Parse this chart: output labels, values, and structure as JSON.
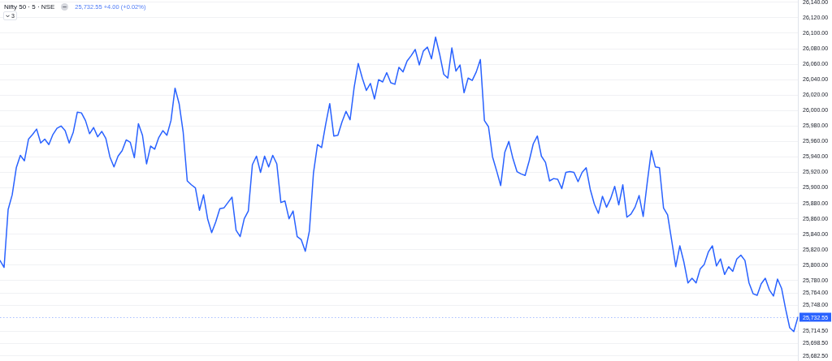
{
  "chart_data": {
    "type": "line",
    "title": "Nifty 50 · 5 · NSE",
    "annotations": [
      "25,732.55 +4.00 (+0.02%)",
      "3"
    ],
    "categories": [
      null,
      null,
      null,
      null,
      null,
      null,
      null,
      null,
      null,
      null,
      null,
      null,
      null,
      null,
      null,
      null,
      null,
      null,
      null,
      null,
      null,
      null,
      null,
      null,
      null,
      null,
      null,
      null,
      null,
      null,
      null,
      null,
      null,
      null,
      null,
      null,
      null,
      null,
      null,
      null,
      null,
      null,
      null,
      null,
      null,
      null,
      null,
      null,
      null,
      null,
      null,
      null,
      null,
      null,
      null,
      null,
      null,
      null,
      null,
      null,
      null,
      null,
      null,
      null,
      null,
      null,
      null,
      null,
      null,
      null,
      null,
      null,
      null,
      null,
      null,
      null,
      null,
      null,
      null,
      null,
      null,
      null,
      null,
      null,
      null,
      null,
      null,
      null,
      null,
      null,
      null,
      null,
      null,
      null,
      null,
      null,
      null,
      null,
      null,
      null,
      null,
      null,
      null,
      null,
      null,
      null,
      null,
      null,
      null,
      null,
      null,
      null,
      null,
      null,
      null,
      null,
      null,
      null,
      null,
      null,
      null,
      null,
      null,
      null,
      null,
      null,
      null,
      null,
      null,
      null,
      null,
      null,
      null,
      null,
      null,
      null,
      null,
      null,
      null,
      null,
      null,
      null,
      null,
      null,
      null,
      null,
      null,
      null,
      null,
      null,
      null,
      null,
      null,
      null,
      null,
      null,
      null,
      null,
      null,
      null,
      null,
      null,
      null,
      null,
      null,
      null,
      null,
      null,
      null,
      null,
      null,
      null,
      null,
      null,
      null,
      null,
      null,
      null,
      null,
      null,
      null,
      null,
      null,
      null,
      null,
      null,
      null,
      null,
      null,
      null,
      null,
      null,
      null,
      null,
      null,
      null,
      null
    ],
    "series": [
      {
        "color": "#2962ff",
        "values": [
          25806,
          25797,
          25872,
          25891,
          25926,
          25942,
          25935,
          25963,
          25969,
          25976,
          25958,
          25963,
          25956,
          25969,
          25977,
          25980,
          25974,
          25958,
          25972,
          25998,
          25997,
          25987,
          25970,
          25978,
          25966,
          25973,
          25964,
          25940,
          25927,
          25941,
          25948,
          25962,
          25959,
          25939,
          25983,
          25968,
          25931,
          25954,
          25950,
          25965,
          25974,
          25968,
          25987,
          26029,
          26009,
          25972,
          25909,
          25904,
          25900,
          25871,
          25891,
          25860,
          25842,
          25856,
          25873,
          25874,
          25881,
          25888,
          25845,
          25837,
          25860,
          25870,
          25930,
          25941,
          25920,
          25941,
          25927,
          25942,
          25931,
          25881,
          25883,
          25860,
          25870,
          25837,
          25833,
          25818,
          25844,
          25919,
          25956,
          25952,
          25982,
          26009,
          25967,
          25968,
          25985,
          25999,
          25988,
          26030,
          26061,
          26042,
          26026,
          26035,
          26015,
          26040,
          26037,
          26049,
          26036,
          26034,
          26056,
          26050,
          26064,
          26071,
          26079,
          26059,
          26077,
          26082,
          26067,
          26095,
          26073,
          26047,
          26042,
          26081,
          26051,
          26059,
          26023,
          26042,
          26039,
          26050,
          26066,
          25987,
          25979,
          25940,
          25922,
          25903,
          25946,
          25960,
          25938,
          25921,
          25918,
          25916,
          25935,
          25957,
          25967,
          25941,
          25933,
          25909,
          25912,
          25911,
          25899,
          25920,
          25921,
          25920,
          25908,
          25920,
          25926,
          25898,
          25879,
          25867,
          25889,
          25875,
          25886,
          25902,
          25878,
          25904,
          25862,
          25866,
          25875,
          25890,
          25863,
          25907,
          25948,
          25927,
          25926,
          25874,
          25865,
          25832,
          25798,
          25825,
          25804,
          25777,
          25783,
          25777,
          25795,
          25801,
          25817,
          25825,
          25799,
          25808,
          25788,
          25798,
          25792,
          25808,
          25813,
          25806,
          25777,
          25763,
          25761,
          25776,
          25783,
          25768,
          25760,
          25782,
          25770,
          25743,
          25719,
          25714,
          25732.55
        ]
      }
    ],
    "ylim": [
      25676,
      26143
    ],
    "yticks": [
      {
        "value": 25682.5,
        "label": "25,682.50"
      },
      {
        "value": 25698.5,
        "label": "25,698.50"
      },
      {
        "value": 25714.5,
        "label": "25,714.50"
      },
      {
        "value": 25748,
        "label": "25,748.00"
      },
      {
        "value": 25764,
        "label": "25,764.00"
      },
      {
        "value": 25780,
        "label": "25,780.00"
      },
      {
        "value": 25800,
        "label": "25,800.00"
      },
      {
        "value": 25820,
        "label": "25,820.00"
      },
      {
        "value": 25840,
        "label": "25,840.00"
      },
      {
        "value": 25860,
        "label": "25,860.00"
      },
      {
        "value": 25880,
        "label": "25,880.00"
      },
      {
        "value": 25900,
        "label": "25,900.00"
      },
      {
        "value": 25920,
        "label": "25,920.00"
      },
      {
        "value": 25940,
        "label": "25,940.00"
      },
      {
        "value": 25960,
        "label": "25,960.00"
      },
      {
        "value": 25980,
        "label": "25,980.00"
      },
      {
        "value": 26000,
        "label": "26,000.00"
      },
      {
        "value": 26020,
        "label": "26,020.00"
      },
      {
        "value": 26040,
        "label": "26,040.00"
      },
      {
        "value": 26060,
        "label": "26,060.00"
      },
      {
        "value": 26080,
        "label": "26,080.00"
      },
      {
        "value": 26100,
        "label": "26,100.00"
      },
      {
        "value": 26120,
        "label": "26,120.00"
      },
      {
        "value": 26140,
        "label": "26,140.00"
      }
    ],
    "ref_lines": [
      {
        "axis": "y",
        "value": 25732.55,
        "label": "25,732.55",
        "color": "#2962ff",
        "line_style": "dotted"
      }
    ],
    "grid": "y",
    "tick_labels": "y",
    "marker": "none",
    "line_style": "solid"
  }
}
